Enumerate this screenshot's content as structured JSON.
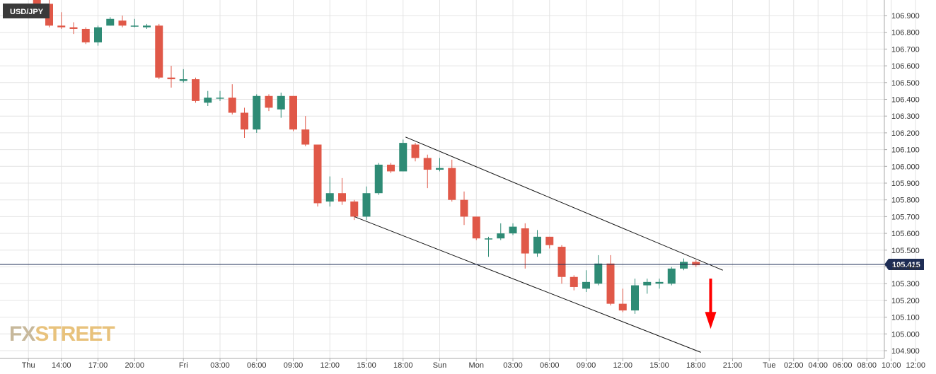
{
  "chart_data": {
    "type": "candlestick",
    "symbol": "USD/JPY",
    "last_price": "105.415",
    "ylim": [
      104.88,
      106.98
    ],
    "y_ticks": [
      "104.900",
      "105.000",
      "105.100",
      "105.200",
      "105.300",
      "105.400",
      "105.500",
      "105.600",
      "105.700",
      "105.800",
      "105.900",
      "106.000",
      "106.100",
      "106.200",
      "106.300",
      "106.400",
      "106.500",
      "106.600",
      "106.700",
      "106.800",
      "106.900"
    ],
    "x_ticks": [
      {
        "i": -1.7,
        "label": "Thu"
      },
      {
        "i": 1.0,
        "label": "14:00"
      },
      {
        "i": 4.0,
        "label": "17:00"
      },
      {
        "i": 7.0,
        "label": "20:00"
      },
      {
        "i": 11.0,
        "label": "Fri"
      },
      {
        "i": 14.0,
        "label": "03:00"
      },
      {
        "i": 17.0,
        "label": "06:00"
      },
      {
        "i": 20.0,
        "label": "09:00"
      },
      {
        "i": 23.0,
        "label": "12:00"
      },
      {
        "i": 26.0,
        "label": "15:00"
      },
      {
        "i": 29.0,
        "label": "18:00"
      },
      {
        "i": 32.0,
        "label": "Sun"
      },
      {
        "i": 35.0,
        "label": "Mon"
      },
      {
        "i": 38.0,
        "label": "03:00"
      },
      {
        "i": 41.0,
        "label": "06:00"
      },
      {
        "i": 44.0,
        "label": "09:00"
      },
      {
        "i": 47.0,
        "label": "12:00"
      },
      {
        "i": 50.0,
        "label": "15:00"
      },
      {
        "i": 53.0,
        "label": "18:00"
      },
      {
        "i": 56.0,
        "label": "21:00"
      },
      {
        "i": 59.0,
        "label": "Tue"
      },
      {
        "i": 61.0,
        "label": "02:00"
      },
      {
        "i": 63.0,
        "label": "04:00"
      },
      {
        "i": 65.0,
        "label": "06:00"
      },
      {
        "i": 67.0,
        "label": "08:00"
      },
      {
        "i": 69.0,
        "label": "10:00"
      },
      {
        "i": 71.0,
        "label": "12:00"
      }
    ],
    "candles": [
      {
        "i": -1,
        "o": 107.0,
        "h": 107.0,
        "l": 106.95,
        "c": 106.96
      },
      {
        "i": 0,
        "o": 106.97,
        "h": 107.0,
        "l": 106.83,
        "c": 106.84
      },
      {
        "i": 1,
        "o": 106.84,
        "h": 106.92,
        "l": 106.82,
        "c": 106.83
      },
      {
        "i": 2,
        "o": 106.83,
        "h": 106.86,
        "l": 106.79,
        "c": 106.82
      },
      {
        "i": 3,
        "o": 106.82,
        "h": 106.83,
        "l": 106.73,
        "c": 106.74
      },
      {
        "i": 4,
        "o": 106.74,
        "h": 106.84,
        "l": 106.72,
        "c": 106.83
      },
      {
        "i": 5,
        "o": 106.84,
        "h": 106.89,
        "l": 106.84,
        "c": 106.88
      },
      {
        "i": 6,
        "o": 106.87,
        "h": 106.9,
        "l": 106.83,
        "c": 106.84
      },
      {
        "i": 7,
        "o": 106.84,
        "h": 106.88,
        "l": 106.83,
        "c": 106.84
      },
      {
        "i": 8,
        "o": 106.83,
        "h": 106.85,
        "l": 106.82,
        "c": 106.84
      },
      {
        "i": 9,
        "o": 106.84,
        "h": 106.85,
        "l": 106.52,
        "c": 106.53
      },
      {
        "i": 10,
        "o": 106.53,
        "h": 106.6,
        "l": 106.47,
        "c": 106.52
      },
      {
        "i": 11,
        "o": 106.51,
        "h": 106.58,
        "l": 106.5,
        "c": 106.52
      },
      {
        "i": 12,
        "o": 106.52,
        "h": 106.53,
        "l": 106.38,
        "c": 106.39
      },
      {
        "i": 13,
        "o": 106.38,
        "h": 106.45,
        "l": 106.36,
        "c": 106.41
      },
      {
        "i": 14,
        "o": 106.41,
        "h": 106.45,
        "l": 106.39,
        "c": 106.41
      },
      {
        "i": 15,
        "o": 106.41,
        "h": 106.49,
        "l": 106.31,
        "c": 106.32
      },
      {
        "i": 16,
        "o": 106.32,
        "h": 106.35,
        "l": 106.17,
        "c": 106.22
      },
      {
        "i": 17,
        "o": 106.22,
        "h": 106.43,
        "l": 106.2,
        "c": 106.42
      },
      {
        "i": 18,
        "o": 106.42,
        "h": 106.43,
        "l": 106.33,
        "c": 106.35
      },
      {
        "i": 19,
        "o": 106.34,
        "h": 106.44,
        "l": 106.29,
        "c": 106.42
      },
      {
        "i": 20,
        "o": 106.42,
        "h": 106.42,
        "l": 106.21,
        "c": 106.22
      },
      {
        "i": 21,
        "o": 106.22,
        "h": 106.3,
        "l": 106.12,
        "c": 106.13
      },
      {
        "i": 22,
        "o": 106.13,
        "h": 106.13,
        "l": 105.76,
        "c": 105.78
      },
      {
        "i": 23,
        "o": 105.79,
        "h": 105.94,
        "l": 105.76,
        "c": 105.84
      },
      {
        "i": 24,
        "o": 105.84,
        "h": 105.93,
        "l": 105.77,
        "c": 105.79
      },
      {
        "i": 25,
        "o": 105.79,
        "h": 105.8,
        "l": 105.68,
        "c": 105.7
      },
      {
        "i": 26,
        "o": 105.7,
        "h": 105.88,
        "l": 105.68,
        "c": 105.84
      },
      {
        "i": 27,
        "o": 105.84,
        "h": 106.02,
        "l": 105.83,
        "c": 106.01
      },
      {
        "i": 28,
        "o": 106.01,
        "h": 106.02,
        "l": 105.96,
        "c": 105.97
      },
      {
        "i": 29,
        "o": 105.97,
        "h": 106.16,
        "l": 105.97,
        "c": 106.14
      },
      {
        "i": 30,
        "o": 106.13,
        "h": 106.14,
        "l": 106.03,
        "c": 106.05
      },
      {
        "i": 31,
        "o": 106.05,
        "h": 106.07,
        "l": 105.87,
        "c": 105.98
      },
      {
        "i": 32,
        "o": 105.98,
        "h": 106.05,
        "l": 105.97,
        "c": 105.99
      },
      {
        "i": 33,
        "o": 105.99,
        "h": 106.04,
        "l": 105.79,
        "c": 105.8
      },
      {
        "i": 34,
        "o": 105.8,
        "h": 105.85,
        "l": 105.65,
        "c": 105.7
      },
      {
        "i": 35,
        "o": 105.7,
        "h": 105.7,
        "l": 105.56,
        "c": 105.57
      },
      {
        "i": 36,
        "o": 105.57,
        "h": 105.58,
        "l": 105.46,
        "c": 105.57
      },
      {
        "i": 37,
        "o": 105.57,
        "h": 105.66,
        "l": 105.56,
        "c": 105.6
      },
      {
        "i": 38,
        "o": 105.6,
        "h": 105.66,
        "l": 105.59,
        "c": 105.64
      },
      {
        "i": 39,
        "o": 105.63,
        "h": 105.66,
        "l": 105.39,
        "c": 105.48
      },
      {
        "i": 40,
        "o": 105.48,
        "h": 105.62,
        "l": 105.46,
        "c": 105.58
      },
      {
        "i": 41,
        "o": 105.58,
        "h": 105.58,
        "l": 105.51,
        "c": 105.53
      },
      {
        "i": 42,
        "o": 105.52,
        "h": 105.53,
        "l": 105.3,
        "c": 105.34
      },
      {
        "i": 43,
        "o": 105.34,
        "h": 105.35,
        "l": 105.26,
        "c": 105.28
      },
      {
        "i": 44,
        "o": 105.27,
        "h": 105.38,
        "l": 105.25,
        "c": 105.31
      },
      {
        "i": 45,
        "o": 105.3,
        "h": 105.47,
        "l": 105.29,
        "c": 105.42
      },
      {
        "i": 46,
        "o": 105.42,
        "h": 105.47,
        "l": 105.17,
        "c": 105.18
      },
      {
        "i": 47,
        "o": 105.18,
        "h": 105.27,
        "l": 105.13,
        "c": 105.14
      },
      {
        "i": 48,
        "o": 105.14,
        "h": 105.33,
        "l": 105.12,
        "c": 105.29
      },
      {
        "i": 49,
        "o": 105.29,
        "h": 105.33,
        "l": 105.24,
        "c": 105.31
      },
      {
        "i": 50,
        "o": 105.3,
        "h": 105.33,
        "l": 105.27,
        "c": 105.31
      },
      {
        "i": 51,
        "o": 105.3,
        "h": 105.4,
        "l": 105.29,
        "c": 105.39
      },
      {
        "i": 52,
        "o": 105.39,
        "h": 105.45,
        "l": 105.38,
        "c": 105.43
      },
      {
        "i": 53,
        "o": 105.43,
        "h": 105.44,
        "l": 105.4,
        "c": 105.41
      }
    ],
    "trendlines": [
      {
        "i1": 29.2,
        "y1": 106.175,
        "i2": 55.2,
        "y2": 105.38
      },
      {
        "i1": 25.0,
        "y1": 105.7,
        "i2": 53.4,
        "y2": 104.89
      }
    ],
    "arrow": {
      "i": 54.2,
      "y_from": 105.33,
      "y_to": 105.03,
      "color": "#ff0000"
    },
    "colors": {
      "up": "#2e8b75",
      "down": "#e05848",
      "grid": "#e4e4e4",
      "price_line": "#1e2d55",
      "label_bg": "#3a3a3a",
      "price_bg": "#1e2d55",
      "axis": "#aaaaaa",
      "logo_fx": "#c7b89b",
      "logo_street": "#e8c27c"
    }
  },
  "logo": {
    "fx": "FX",
    "street": "STREET"
  }
}
